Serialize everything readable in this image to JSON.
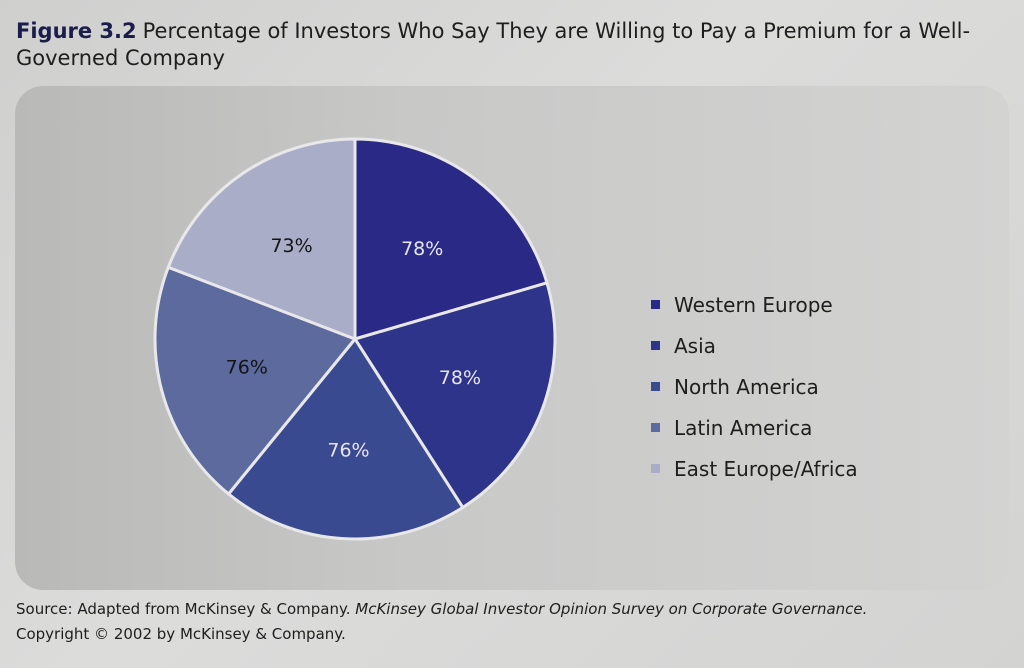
{
  "figure": {
    "number": "Figure 3.2",
    "title": "Percentage of Investors Who Say They are Willing to Pay a Premium for a Well-Governed Company"
  },
  "chart_data": {
    "type": "pie",
    "title": "Percentage of Investors Who Say They are Willing to Pay a Premium for a Well-Governed Company",
    "categories": [
      "Western Europe",
      "Asia",
      "North America",
      "Latin America",
      "East Europe/Africa"
    ],
    "values": [
      78,
      78,
      76,
      76,
      73
    ],
    "data_labels": [
      "78%",
      "78%",
      "76%",
      "76%",
      "73%"
    ],
    "colors": [
      "#2a2a86",
      "#2e348a",
      "#3a4a91",
      "#5c6a9e",
      "#a9adc7"
    ],
    "label_colors": [
      "#e6e6f2",
      "#e6e6f2",
      "#e6e6f2",
      "#141414",
      "#141414"
    ],
    "legend_position": "right"
  },
  "source": {
    "prefix": "Source: Adapted from McKinsey & Company. ",
    "publication": "McKinsey Global Investor Opinion Survey on Corporate Governance.",
    "copyright": "Copyright © 2002 by McKinsey & Company."
  }
}
